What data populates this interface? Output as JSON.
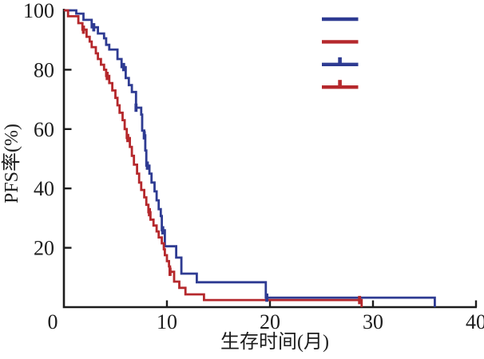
{
  "chart_data": {
    "type": "line",
    "subtype": "kaplan-meier-step",
    "title": "",
    "xlabel": "生存时间(月)",
    "ylabel": "PFS率(%)",
    "xlim": [
      0,
      40
    ],
    "ylim": [
      0,
      100
    ],
    "xticks": [
      0,
      10,
      20,
      30,
      40
    ],
    "yticks": [
      20,
      40,
      60,
      80,
      100
    ],
    "grid": false,
    "axis_color": "#1c1c1c",
    "legend": {
      "position": "top-right",
      "entries": [
        {
          "id": "blue-line-sample",
          "color": "#2e3b92",
          "censor_tick": false
        },
        {
          "id": "red-line-sample",
          "color": "#b5282c",
          "censor_tick": false
        },
        {
          "id": "blue-censored-sample",
          "color": "#2e3b92",
          "censor_tick": true
        },
        {
          "id": "red-censored-sample",
          "color": "#b5282c",
          "censor_tick": true
        }
      ]
    },
    "series": [
      {
        "id": "blue-curve",
        "color": "#2e3b92",
        "points": [
          [
            0,
            100
          ],
          [
            1.2,
            98.9
          ],
          [
            1.9,
            96.8
          ],
          [
            2.7,
            94.3
          ],
          [
            3.3,
            92.2
          ],
          [
            3.9,
            90.6
          ],
          [
            4.1,
            88.4
          ],
          [
            4.4,
            86.8
          ],
          [
            5.2,
            83.6
          ],
          [
            5.6,
            80.9
          ],
          [
            6.0,
            77.2
          ],
          [
            6.3,
            74.8
          ],
          [
            6.6,
            72.5
          ],
          [
            7.0,
            67.2
          ],
          [
            7.5,
            64.9
          ],
          [
            7.6,
            59.5
          ],
          [
            7.8,
            57.9
          ],
          [
            7.9,
            52.8
          ],
          [
            8.0,
            47.7
          ],
          [
            8.3,
            45.0
          ],
          [
            8.5,
            42.0
          ],
          [
            8.8,
            39.0
          ],
          [
            9.0,
            36.0
          ],
          [
            9.2,
            33.0
          ],
          [
            9.4,
            30.7
          ],
          [
            9.5,
            25.9
          ],
          [
            9.8,
            20.5
          ],
          [
            10.9,
            16.7
          ],
          [
            11.4,
            11.3
          ],
          [
            12.9,
            8.4
          ],
          [
            19.6,
            3.2
          ],
          [
            36.0,
            0
          ]
        ],
        "censors": [
          [
            2.9,
            94.3
          ],
          [
            5.8,
            80.9
          ],
          [
            7.0,
            67.2
          ],
          [
            7.8,
            57.9
          ],
          [
            8.1,
            47.7
          ],
          [
            9.6,
            25.9
          ],
          [
            19.7,
            3.2
          ]
        ]
      },
      {
        "id": "red-curve",
        "color": "#b5282c",
        "points": [
          [
            0,
            100
          ],
          [
            0.4,
            98.0
          ],
          [
            1.4,
            95.7
          ],
          [
            1.8,
            93.5
          ],
          [
            2.2,
            91.1
          ],
          [
            2.5,
            89.5
          ],
          [
            2.7,
            87.6
          ],
          [
            3.1,
            85.5
          ],
          [
            3.3,
            83.6
          ],
          [
            3.6,
            81.7
          ],
          [
            3.9,
            80.0
          ],
          [
            4.1,
            77.9
          ],
          [
            4.4,
            75.5
          ],
          [
            4.7,
            73.0
          ],
          [
            5.0,
            70.5
          ],
          [
            5.2,
            68.0
          ],
          [
            5.4,
            65.5
          ],
          [
            5.7,
            63.0
          ],
          [
            5.9,
            60.0
          ],
          [
            6.1,
            57.0
          ],
          [
            6.4,
            54.0
          ],
          [
            6.6,
            51.0
          ],
          [
            6.8,
            48.0
          ],
          [
            7.1,
            45.0
          ],
          [
            7.3,
            42.0
          ],
          [
            7.5,
            39.5
          ],
          [
            7.8,
            37.0
          ],
          [
            8.0,
            34.5
          ],
          [
            8.2,
            32.0
          ],
          [
            8.4,
            29.5
          ],
          [
            8.7,
            27.5
          ],
          [
            9.0,
            25.5
          ],
          [
            9.2,
            23.5
          ],
          [
            9.5,
            21.5
          ],
          [
            9.7,
            19.5
          ],
          [
            9.8,
            17.5
          ],
          [
            10.0,
            15.5
          ],
          [
            10.2,
            13.7
          ],
          [
            10.3,
            11.9
          ],
          [
            10.7,
            8.6
          ],
          [
            11.2,
            6.5
          ],
          [
            11.8,
            4.3
          ],
          [
            13.6,
            2.4
          ],
          [
            28.9,
            0
          ]
        ],
        "censors": [
          [
            1.9,
            93.5
          ],
          [
            4.2,
            77.9
          ],
          [
            6.2,
            57.0
          ],
          [
            8.3,
            32.0
          ],
          [
            10.3,
            11.9
          ],
          [
            28.7,
            2.4
          ]
        ]
      }
    ]
  }
}
